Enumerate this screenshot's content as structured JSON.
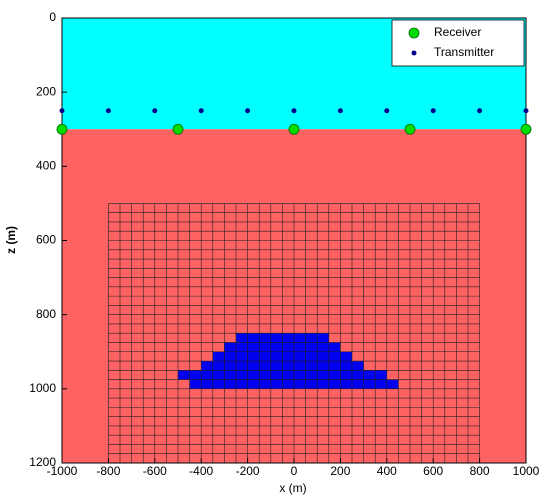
{
  "chart_data": {
    "type": "scatter",
    "xlabel": "x (m)",
    "ylabel": "z (m)",
    "xlim": [
      -1000,
      1000
    ],
    "ylim": [
      1200,
      0
    ],
    "xticks": [
      -1000,
      -800,
      -600,
      -400,
      -200,
      0,
      200,
      400,
      600,
      800,
      1000
    ],
    "yticks": [
      0,
      200,
      400,
      600,
      800,
      1000,
      1200
    ],
    "legend": "upper right",
    "layers": [
      {
        "top": 0,
        "bottom": 300,
        "color": "#00ffff"
      },
      {
        "top": 300,
        "bottom": 1200,
        "color": "#ff6262"
      }
    ],
    "mesh": {
      "x": [
        -800,
        800
      ],
      "z": [
        500,
        1200
      ],
      "dx": 50,
      "dz": 25
    },
    "anomaly_color": "#0000ee",
    "anomaly": [
      {
        "x0": -250,
        "x1": 150,
        "z0": 850,
        "z1": 875
      },
      {
        "x0": -300,
        "x1": 200,
        "z0": 875,
        "z1": 900
      },
      {
        "x0": -350,
        "x1": 250,
        "z0": 900,
        "z1": 925
      },
      {
        "x0": -400,
        "x1": 300,
        "z0": 925,
        "z1": 950
      },
      {
        "x0": -500,
        "x1": 400,
        "z0": 950,
        "z1": 975
      },
      {
        "x0": -450,
        "x1": 450,
        "z0": 975,
        "z1": 1000
      }
    ],
    "series": [
      {
        "name": "Receiver",
        "color": "#00dd00",
        "x": [
          -1000,
          -500,
          0,
          500,
          1000
        ],
        "values": [
          300,
          300,
          300,
          300,
          300
        ]
      },
      {
        "name": "Transmitter",
        "color": "#00008b",
        "x": [
          -1000,
          -800,
          -600,
          -400,
          -200,
          0,
          200,
          400,
          600,
          800,
          1000
        ],
        "values": [
          250,
          250,
          250,
          250,
          250,
          250,
          250,
          250,
          250,
          250,
          250
        ]
      }
    ]
  }
}
